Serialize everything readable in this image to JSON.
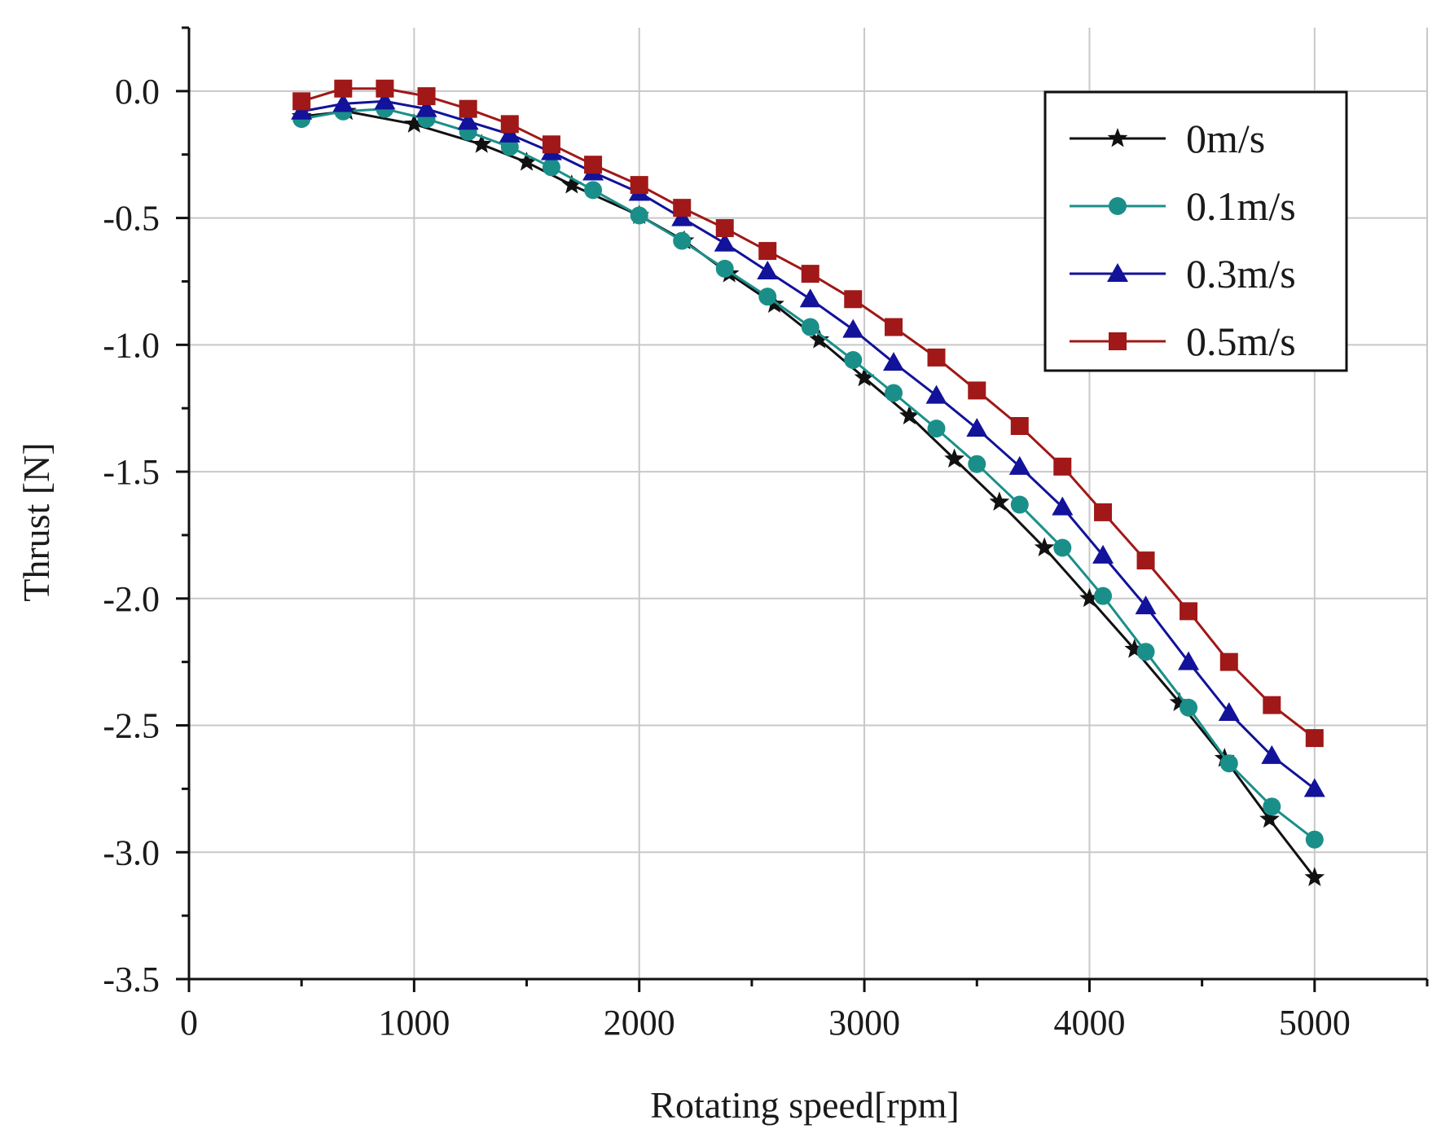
{
  "chart_data": {
    "type": "line",
    "title": "",
    "xlabel": "Rotating speed[rpm]",
    "ylabel": "Thrust [N]",
    "xlim": [
      0,
      5500
    ],
    "ylim": [
      -3.5,
      0.25
    ],
    "xticks": [
      0,
      1000,
      2000,
      3000,
      4000,
      5000
    ],
    "xtick_labels": [
      "0",
      "1000",
      "2000",
      "3000",
      "4000",
      "5000"
    ],
    "yticks": [
      0.0,
      -0.5,
      -1.0,
      -1.5,
      -2.0,
      -2.5,
      -3.0,
      -3.5
    ],
    "ytick_labels": [
      "0.0",
      "-0.5",
      "-1.0",
      "-1.5",
      "-2.0",
      "-2.5",
      "-3.0",
      "-3.5"
    ],
    "grid": true,
    "legend_position": "top-right",
    "series": [
      {
        "name": "0m/s",
        "color": "#111111",
        "marker": "star",
        "x": [
          500,
          700,
          1000,
          1300,
          1500,
          1700,
          2000,
          2200,
          2400,
          2600,
          2800,
          3000,
          3200,
          3400,
          3600,
          3800,
          4000,
          4200,
          4400,
          4600,
          4800,
          5000
        ],
        "y": [
          -0.1,
          -0.08,
          -0.13,
          -0.21,
          -0.28,
          -0.37,
          -0.49,
          -0.59,
          -0.72,
          -0.84,
          -0.98,
          -1.13,
          -1.28,
          -1.45,
          -1.62,
          -1.8,
          -2.0,
          -2.2,
          -2.41,
          -2.63,
          -2.87,
          -3.1
        ]
      },
      {
        "name": "0.1m/s",
        "color": "#1a8f8a",
        "marker": "circle",
        "x": [
          500,
          685,
          870,
          1055,
          1240,
          1425,
          1610,
          1795,
          2000,
          2190,
          2380,
          2570,
          2760,
          2950,
          3130,
          3320,
          3500,
          3690,
          3880,
          4060,
          4250,
          4440,
          4620,
          4810,
          5000
        ],
        "y": [
          -0.11,
          -0.08,
          -0.07,
          -0.11,
          -0.16,
          -0.22,
          -0.3,
          -0.39,
          -0.49,
          -0.59,
          -0.7,
          -0.81,
          -0.93,
          -1.06,
          -1.19,
          -1.33,
          -1.47,
          -1.63,
          -1.8,
          -1.99,
          -2.21,
          -2.43,
          -2.65,
          -2.82,
          -2.95
        ]
      },
      {
        "name": "0.3m/s",
        "color": "#12129a",
        "marker": "triangle",
        "x": [
          500,
          685,
          870,
          1055,
          1240,
          1425,
          1610,
          1795,
          2000,
          2190,
          2380,
          2570,
          2760,
          2950,
          3130,
          3320,
          3500,
          3690,
          3880,
          4060,
          4250,
          4440,
          4620,
          4810,
          5000
        ],
        "y": [
          -0.08,
          -0.05,
          -0.04,
          -0.07,
          -0.12,
          -0.17,
          -0.24,
          -0.32,
          -0.4,
          -0.5,
          -0.6,
          -0.71,
          -0.82,
          -0.94,
          -1.07,
          -1.2,
          -1.33,
          -1.48,
          -1.64,
          -1.83,
          -2.03,
          -2.25,
          -2.45,
          -2.62,
          -2.75
        ]
      },
      {
        "name": "0.5m/s",
        "color": "#a01818",
        "marker": "square",
        "x": [
          500,
          685,
          870,
          1055,
          1240,
          1425,
          1610,
          1795,
          2000,
          2190,
          2380,
          2570,
          2760,
          2950,
          3130,
          3320,
          3500,
          3690,
          3880,
          4060,
          4250,
          4440,
          4620,
          4810,
          5000
        ],
        "y": [
          -0.04,
          0.01,
          0.01,
          -0.02,
          -0.07,
          -0.13,
          -0.21,
          -0.29,
          -0.37,
          -0.46,
          -0.54,
          -0.63,
          -0.72,
          -0.82,
          -0.93,
          -1.05,
          -1.18,
          -1.32,
          -1.48,
          -1.66,
          -1.85,
          -2.05,
          -2.25,
          -2.42,
          -2.55
        ]
      }
    ]
  }
}
